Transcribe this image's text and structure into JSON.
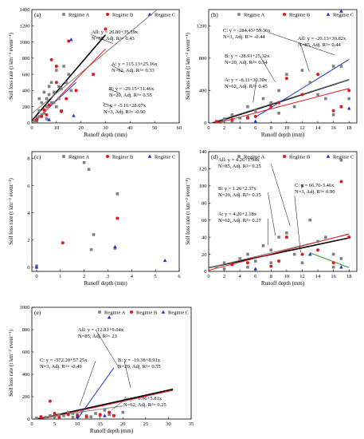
{
  "colors": {
    "A": "#808080",
    "B": "#e41a1c",
    "C": "#1f2fd6",
    "All": "#000000",
    "green": "#2ca02c"
  },
  "legend_names": [
    "Regime A",
    "Regime B",
    "Regime C"
  ],
  "chart_data": [
    {
      "type": "scatter",
      "panel": "(a)",
      "xlabel": "Runoff depth (mm)",
      "ylabel": "Soil loss rate (t km⁻² event⁻¹)",
      "xlim": [
        0,
        60
      ],
      "ylim": [
        0,
        1400
      ],
      "xticks": [
        0,
        10,
        20,
        30,
        40,
        50,
        60
      ],
      "yticks": [
        0,
        200,
        400,
        600,
        800,
        1000,
        1200,
        1400
      ],
      "series": [
        {
          "name": "Regime A",
          "points": [
            [
              1,
              30
            ],
            [
              2,
              60
            ],
            [
              3,
              150
            ],
            [
              4,
              250
            ],
            [
              5,
              380
            ],
            [
              3,
              80
            ],
            [
              6,
              300
            ],
            [
              7,
              450
            ],
            [
              8,
              500
            ],
            [
              9,
              380
            ],
            [
              10,
              650
            ],
            [
              11,
              300
            ],
            [
              12,
              420
            ],
            [
              13,
              700
            ],
            [
              5,
              120
            ],
            [
              6,
              200
            ],
            [
              2,
              20
            ],
            [
              8,
              250
            ],
            [
              14,
              500
            ],
            [
              4,
              100
            ],
            [
              10,
              200
            ],
            [
              15,
              600
            ],
            [
              3,
              300
            ],
            [
              7,
              350
            ],
            [
              9,
              250
            ],
            [
              1,
              10
            ],
            [
              12,
              150
            ],
            [
              16,
              400
            ],
            [
              6,
              50
            ],
            [
              11,
              450
            ]
          ]
        },
        {
          "name": "Regime B",
          "points": [
            [
              2,
              40
            ],
            [
              4,
              80
            ],
            [
              5,
              160
            ],
            [
              7,
              220
            ],
            [
              8,
              780
            ],
            [
              10,
              500
            ],
            [
              12,
              140
            ],
            [
              15,
              1010
            ],
            [
              18,
              400
            ],
            [
              30,
              1160
            ],
            [
              25,
              600
            ],
            [
              10,
              700
            ],
            [
              6,
              100
            ],
            [
              14,
              300
            ]
          ]
        },
        {
          "name": "Regime C",
          "points": [
            [
              7,
              40
            ],
            [
              16,
              1030
            ],
            [
              17,
              90
            ]
          ]
        }
      ],
      "fits": [
        {
          "name": "All",
          "intercept": 26.8,
          "slope": 35.39,
          "xrange": [
            0,
            30
          ],
          "color": "#000000"
        },
        {
          "name": "A",
          "intercept": 115.13,
          "slope": 25.16,
          "xrange": [
            0,
            52
          ],
          "color": "#808080"
        },
        {
          "name": "B",
          "intercept": -29.15,
          "slope": 31.46,
          "xrange": [
            1,
            30
          ],
          "color": "#e41a1c"
        },
        {
          "name": "C",
          "intercept": -5.16,
          "slope": 28.07,
          "xrange": [
            7,
            18
          ],
          "color": "#1f2fd6"
        }
      ],
      "annotations": [
        "All: y = 26.80+35.39x",
        "N=85, Adj. R²= 0.43",
        "A: y = 115.13+25.16x",
        "N=62, Adj. R²= 0.33",
        "B: y = -29.15+31.46x",
        "N=20, Adj. R²= 0.55",
        "C: y = -5.16+28.07x",
        "N=3, Adj. R²= -0.90"
      ]
    },
    {
      "type": "scatter",
      "panel": "(b)",
      "xlabel": "Runoff depth (mm)",
      "ylabel": "Soil loss rate (t km⁻² event⁻¹)",
      "xlim": [
        0,
        19
      ],
      "ylim": [
        0,
        1400
      ],
      "xticks": [
        0,
        2,
        4,
        6,
        8,
        10,
        12,
        14,
        16,
        18
      ],
      "yticks": [
        0,
        400,
        800,
        1200
      ],
      "series": [
        {
          "name": "Regime A",
          "points": [
            [
              1,
              20
            ],
            [
              2,
              50
            ],
            [
              3,
              100
            ],
            [
              4,
              60
            ],
            [
              5,
              200
            ],
            [
              6,
              150
            ],
            [
              7,
              300
            ],
            [
              8,
              250
            ],
            [
              9,
              400
            ],
            [
              10,
              600
            ],
            [
              11,
              200
            ],
            [
              12,
              650
            ],
            [
              13,
              500
            ],
            [
              14,
              350
            ],
            [
              15,
              300
            ],
            [
              16,
              700
            ],
            [
              17,
              200
            ],
            [
              18,
              300
            ],
            [
              2,
              30
            ],
            [
              5,
              80
            ],
            [
              9,
              120
            ],
            [
              16,
              100
            ],
            [
              17,
              700
            ],
            [
              3,
              10
            ]
          ]
        },
        {
          "name": "Regime B",
          "points": [
            [
              1,
              10
            ],
            [
              3,
              40
            ],
            [
              5,
              60
            ],
            [
              6,
              80
            ],
            [
              8,
              200
            ],
            [
              10,
              550
            ],
            [
              12,
              350
            ],
            [
              14,
              600
            ],
            [
              16,
              150
            ],
            [
              17,
              200
            ],
            [
              18,
              400
            ],
            [
              9,
              250
            ]
          ]
        },
        {
          "name": "Regime C",
          "points": [
            [
              6,
              20
            ],
            [
              17,
              1380
            ],
            [
              18,
              180
            ]
          ]
        }
      ],
      "fits": [
        {
          "name": "All",
          "intercept": -20.13,
          "slope": 30.82,
          "xrange": [
            0,
            18
          ],
          "color": "#000000"
        },
        {
          "name": "A",
          "intercept": -8.11,
          "slope": 30.3,
          "xrange": [
            0,
            18
          ],
          "color": "#808080"
        },
        {
          "name": "B",
          "intercept": -28.91,
          "slope": 25.32,
          "xrange": [
            1,
            18
          ],
          "color": "#e41a1c"
        },
        {
          "name": "C",
          "intercept": -284.45,
          "slope": 59.36,
          "xrange": [
            6,
            18
          ],
          "color": "#1f2fd6"
        }
      ],
      "annotations": [
        "C: y = -284.45+59.36x",
        "N=3, Adj. R²= -0.44",
        "All: y = -20.13+30.82x",
        "N=85, Adj. R²= 0.44",
        "B: y = -28.91+25.32x",
        "N=20, Adj. R²= 0.54",
        "A: y = -8.11+30.30x",
        "N=62, Adj. R²= 0.45"
      ]
    },
    {
      "type": "scatter",
      "panel": "(c)",
      "xlabel": "Runoff depth (mm)",
      "ylabel": "Soil loss rate (t km⁻² event⁻¹)",
      "xlim": [
        -0.2,
        6
      ],
      "ylim": [
        -0.3,
        8.5
      ],
      "xticks": [
        0,
        1,
        2,
        3,
        4,
        5,
        6
      ],
      "yticks": [
        0,
        2,
        4,
        6,
        8
      ],
      "series": [
        {
          "name": "Regime A",
          "points": [
            [
              0,
              0.1
            ],
            [
              2,
              7.7
            ],
            [
              2.2,
              7.2
            ],
            [
              2.4,
              2.4
            ],
            [
              2.3,
              1.3
            ],
            [
              3.4,
              5.4
            ],
            [
              3.3,
              1.4
            ]
          ]
        },
        {
          "name": "Regime B",
          "points": [
            [
              1.1,
              1.8
            ],
            [
              3.4,
              3.6
            ]
          ]
        },
        {
          "name": "Regime C",
          "points": [
            [
              0,
              0
            ],
            [
              3.3,
              1.5
            ],
            [
              5.4,
              0.5
            ]
          ]
        }
      ],
      "fits": [],
      "annotations": []
    },
    {
      "type": "scatter",
      "panel": "(d)",
      "xlabel": "Runoff depth (mm)",
      "ylabel": "Soil loss rate (t km⁻² event⁻¹)",
      "xlim": [
        0,
        19
      ],
      "ylim": [
        0,
        140
      ],
      "xticks": [
        0,
        2,
        4,
        6,
        8,
        10,
        12,
        14,
        16,
        18
      ],
      "yticks": [
        0,
        20,
        40,
        60,
        80,
        100,
        120,
        140
      ],
      "series": [
        {
          "name": "Regime A",
          "points": [
            [
              1,
              5
            ],
            [
              2,
              10
            ],
            [
              3,
              8
            ],
            [
              4,
              15
            ],
            [
              5,
              20
            ],
            [
              6,
              12
            ],
            [
              7,
              30
            ],
            [
              8,
              25
            ],
            [
              9,
              40
            ],
            [
              10,
              45
            ],
            [
              11,
              20
            ],
            [
              12,
              100
            ],
            [
              13,
              60
            ],
            [
              14,
              35
            ],
            [
              15,
              40
            ],
            [
              16,
              20
            ],
            [
              17,
              130
            ],
            [
              18,
              40
            ],
            [
              2,
              3
            ],
            [
              5,
              5
            ],
            [
              8,
              10
            ],
            [
              12,
              10
            ],
            [
              16,
              5
            ],
            [
              17,
              15
            ]
          ]
        },
        {
          "name": "Regime B",
          "points": [
            [
              3,
              8
            ],
            [
              5,
              10
            ],
            [
              8,
              6
            ],
            [
              10,
              40
            ],
            [
              12,
              20
            ],
            [
              14,
              25
            ],
            [
              16,
              10
            ],
            [
              17,
              105
            ],
            [
              18,
              40
            ],
            [
              9,
              12
            ]
          ]
        },
        {
          "name": "Regime C",
          "points": [
            [
              6,
              3
            ],
            [
              13,
              20
            ],
            [
              17,
              5
            ]
          ]
        }
      ],
      "fits": [
        {
          "name": "All",
          "intercept": 4.26,
          "slope": 1.94,
          "xrange": [
            0,
            18
          ],
          "color": "#000000"
        },
        {
          "name": "A",
          "intercept": 4.2,
          "slope": 2.18,
          "xrange": [
            0,
            18
          ],
          "color": "#808080"
        },
        {
          "name": "B",
          "intercept": 1.26,
          "slope": 2.37,
          "xrange": [
            0,
            18
          ],
          "color": "#e41a1c"
        },
        {
          "name": "C",
          "intercept": 66.7,
          "slope": -3.46,
          "xrange": [
            13,
            18
          ],
          "color": "#2ca02c"
        }
      ],
      "annotations": [
        "All: y = 4.26+1.94x",
        "N=85, Adj. R²= 0.25",
        "B: y = 1.26+2.37x",
        "N=20, Adj. R²= 0.35",
        "A: y = 4.20+2.18x",
        "N=62, Adj. R²= 0.27",
        "C: y = 66.70-3.46x",
        "N=3, Adj. R²= 0.90"
      ]
    },
    {
      "type": "scatter",
      "panel": "(e)",
      "xlabel": "Runoff depth (mm)",
      "ylabel": "Soil loss rate (t km⁻² event⁻¹)",
      "xlim": [
        0,
        35
      ],
      "ylim": [
        0,
        1000
      ],
      "xticks": [
        0,
        5,
        10,
        15,
        20,
        25,
        30,
        35
      ],
      "yticks": [
        0,
        200,
        400,
        600,
        800,
        1000
      ],
      "series": [
        {
          "name": "Regime A",
          "points": [
            [
              1,
              10
            ],
            [
              2,
              20
            ],
            [
              3,
              15
            ],
            [
              4,
              30
            ],
            [
              5,
              20
            ],
            [
              6,
              40
            ],
            [
              7,
              30
            ],
            [
              8,
              60
            ],
            [
              9,
              50
            ],
            [
              10,
              40
            ],
            [
              11,
              70
            ],
            [
              12,
              30
            ],
            [
              13,
              20
            ],
            [
              14,
              50
            ],
            [
              15,
              30
            ],
            [
              16,
              80
            ],
            [
              17,
              40
            ],
            [
              18,
              30
            ],
            [
              20,
              60
            ],
            [
              3,
              5
            ],
            [
              6,
              10
            ],
            [
              9,
              15
            ]
          ]
        },
        {
          "name": "Regime B",
          "points": [
            [
              2,
              20
            ],
            [
              4,
              160
            ],
            [
              5,
              50
            ],
            [
              8,
              40
            ],
            [
              10,
              30
            ],
            [
              12,
              20
            ],
            [
              15,
              40
            ],
            [
              18,
              30
            ],
            [
              17,
              60
            ],
            [
              6,
              15
            ]
          ]
        },
        {
          "name": "Regime C",
          "points": [
            [
              17,
              910
            ],
            [
              16,
              30
            ],
            [
              10,
              20
            ]
          ]
        }
      ],
      "fits": [
        {
          "name": "All",
          "intercept": -12.81,
          "slope": 9.04,
          "xrange": [
            1,
            31
          ],
          "color": "#000000"
        },
        {
          "name": "A",
          "intercept": 0.96,
          "slope": 5.81,
          "xrange": [
            0,
            20
          ],
          "color": "#808080"
        },
        {
          "name": "B",
          "intercept": -19.38,
          "slope": 8.91,
          "xrange": [
            2,
            31
          ],
          "color": "#e41a1c"
        },
        {
          "name": "C",
          "intercept": -572.2,
          "slope": 57.25,
          "xrange": [
            10,
            18
          ],
          "color": "#1f2fd6"
        }
      ],
      "annotations": [
        "All: y = -12.81+9.04x",
        "N=85, Adj. R²= 23",
        "C: y = -572.20+57.25x",
        "N=3, Adj. R²= -0.49",
        "B: y = -19.38+8.91x",
        "N=20, Adj. R²= 0.55",
        "A: y = 0.96+5.81x",
        "N=62, Adj. R²= 0.25"
      ]
    }
  ]
}
